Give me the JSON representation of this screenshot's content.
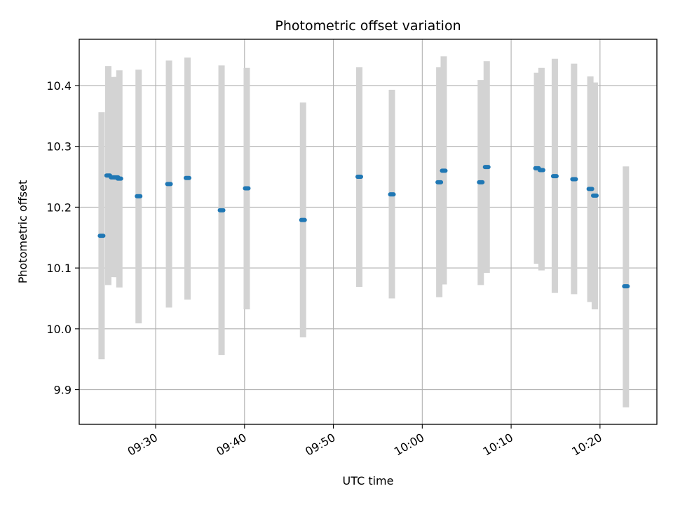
{
  "chart_data": {
    "type": "scatter",
    "title": "Photometric offset variation",
    "xlabel": "UTC time",
    "ylabel": "Photometric offset",
    "xlim": [
      "09:21:24",
      "10:26:24"
    ],
    "ylim": [
      9.843,
      10.476
    ],
    "grid": true,
    "xticks": [
      "09:30",
      "09:40",
      "09:50",
      "10:00",
      "10:10",
      "10:20"
    ],
    "yticks": [
      "9.9",
      "10.0",
      "10.1",
      "10.2",
      "10.3",
      "10.4"
    ],
    "series": [
      {
        "x": [
          "09:23:55",
          "09:24:40",
          "09:25:10",
          "09:25:35",
          "09:25:55",
          "09:28:05",
          "09:31:30",
          "09:33:35",
          "09:37:25",
          "09:40:15",
          "09:46:35",
          "09:52:55",
          "09:56:35",
          "10:01:55",
          "10:02:25",
          "10:06:35",
          "10:07:15",
          "10:12:55",
          "10:13:25",
          "10:14:55",
          "10:17:05",
          "10:18:55",
          "10:19:25",
          "10:22:55"
        ],
        "y": [
          10.153,
          10.252,
          10.249,
          10.249,
          10.247,
          10.218,
          10.238,
          10.248,
          10.195,
          10.231,
          10.179,
          10.25,
          10.221,
          10.241,
          10.26,
          10.241,
          10.266,
          10.264,
          10.261,
          10.251,
          10.246,
          10.23,
          10.219,
          10.07
        ],
        "err_low": [
          9.95,
          10.072,
          10.085,
          10.085,
          10.068,
          10.009,
          10.035,
          10.048,
          9.957,
          10.032,
          9.986,
          10.069,
          10.05,
          10.052,
          10.073,
          10.072,
          10.092,
          10.107,
          10.096,
          10.059,
          10.057,
          10.044,
          10.032,
          9.871
        ],
        "err_high": [
          10.356,
          10.432,
          10.414,
          10.414,
          10.425,
          10.426,
          10.441,
          10.446,
          10.433,
          10.429,
          10.372,
          10.43,
          10.393,
          10.43,
          10.448,
          10.409,
          10.44,
          10.421,
          10.429,
          10.444,
          10.436,
          10.415,
          10.405,
          10.267
        ]
      }
    ],
    "colors": {
      "points": "#1f77b4",
      "errorbars": "#d3d3d3",
      "grid": "#b0b0b0"
    }
  }
}
